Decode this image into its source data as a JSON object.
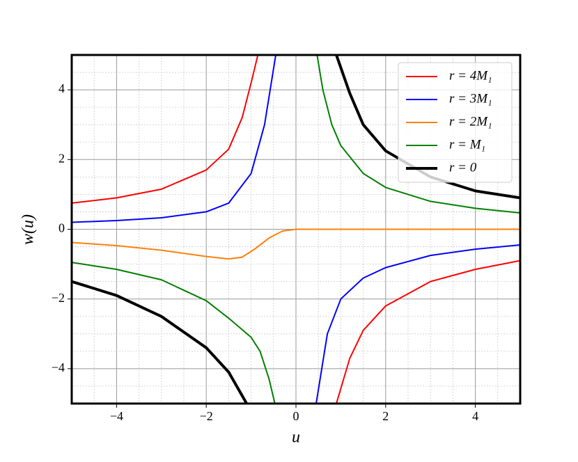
{
  "chart_data": {
    "type": "line",
    "xlabel": "u",
    "ylabel": "w(u)",
    "xlim": [
      -5,
      5
    ],
    "ylim": [
      -5,
      5
    ],
    "xticks": [
      {
        "value": -4,
        "label": "−4"
      },
      {
        "value": -2,
        "label": "−2"
      },
      0,
      2,
      4
    ],
    "yticks": [
      {
        "value": -4,
        "label": "−4"
      },
      {
        "value": -2,
        "label": "−2"
      },
      0,
      2,
      4
    ],
    "minor_xticks": [
      -4.5,
      -3.5,
      -3,
      -2.5,
      -1.5,
      -1,
      -0.5,
      0.5,
      1,
      1.5,
      2.5,
      3,
      3.5,
      4.5
    ],
    "minor_yticks": [
      -4.5,
      -3.5,
      -3,
      -2.5,
      -1.5,
      -1,
      -0.5,
      0.5,
      1,
      1.5,
      2.5,
      3,
      3.5,
      4.5
    ],
    "grid": true,
    "legend": "upper right",
    "series": [
      {
        "name": "r = 4M₁",
        "color": "#ff0000",
        "width": 2,
        "x": [
          -5,
          -4,
          -3,
          -2,
          -1.5,
          -1.2,
          -1,
          -0.85,
          null,
          0.9,
          1.2,
          1.5,
          2,
          3,
          4,
          5
        ],
        "values": [
          0.75,
          0.9,
          1.15,
          1.7,
          2.3,
          3.2,
          4.2,
          5,
          null,
          -5,
          -3.7,
          -2.9,
          -2.2,
          -1.5,
          -1.15,
          -0.9
        ]
      },
      {
        "name": "r = 3M₁",
        "color": "#0000ff",
        "width": 2,
        "x": [
          -5,
          -4,
          -3,
          -2,
          -1.5,
          -1,
          -0.7,
          -0.45,
          null,
          0.45,
          0.7,
          1,
          1.5,
          2,
          3,
          4,
          5
        ],
        "values": [
          0.2,
          0.25,
          0.33,
          0.5,
          0.75,
          1.6,
          3,
          5,
          null,
          -5,
          -3,
          -2,
          -1.4,
          -1.1,
          -0.75,
          -0.57,
          -0.45
        ]
      },
      {
        "name": "r = 2M₁",
        "color": "#ff7f0e",
        "width": 2,
        "x": [
          -5,
          -4,
          -3,
          -2,
          -1.5,
          -1.2,
          -0.9,
          -0.6,
          -0.3,
          0,
          1,
          5
        ],
        "values": [
          -0.38,
          -0.47,
          -0.6,
          -0.78,
          -0.85,
          -0.8,
          -0.55,
          -0.25,
          -0.05,
          0,
          0,
          0
        ]
      },
      {
        "name": "r = M₁",
        "color": "#008000",
        "width": 2,
        "x": [
          -5,
          -4,
          -3,
          -2,
          -1.5,
          -1,
          -0.8,
          -0.6,
          -0.47,
          null,
          0.47,
          0.6,
          0.8,
          1,
          1.5,
          2,
          3,
          4,
          5
        ],
        "values": [
          -0.95,
          -1.15,
          -1.45,
          -2.05,
          -2.55,
          -3.1,
          -3.5,
          -4.3,
          -5,
          null,
          5,
          4,
          3,
          2.4,
          1.6,
          1.2,
          0.8,
          0.6,
          0.47
        ]
      },
      {
        "name": "r = 0",
        "color": "#000000",
        "width": 4,
        "x": [
          -5,
          -4,
          -3,
          -2,
          -1.5,
          -1.1,
          null,
          0.9,
          1.2,
          1.5,
          2,
          3,
          4,
          5
        ],
        "values": [
          -1.5,
          -1.9,
          -2.5,
          -3.4,
          -4.1,
          -5,
          null,
          5,
          3.9,
          3.0,
          2.25,
          1.5,
          1.1,
          0.9
        ]
      }
    ]
  }
}
